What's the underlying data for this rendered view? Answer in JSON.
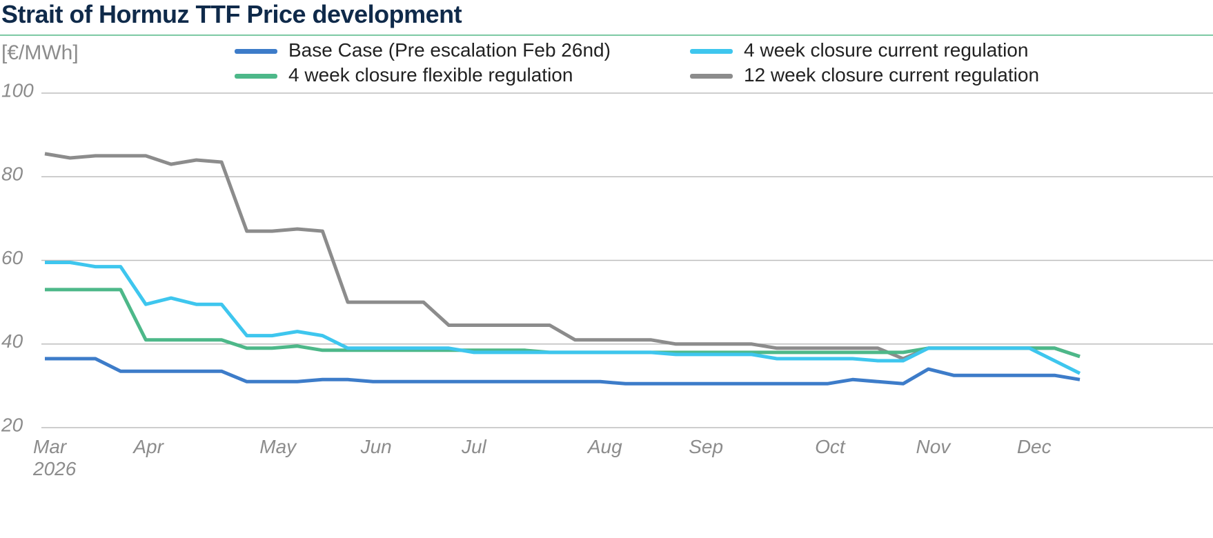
{
  "chart_data": {
    "type": "line",
    "title": "Strait of Hormuz  TTF Price development",
    "y_label": "[€/MWh]",
    "categories": [
      "Mar 2026",
      null,
      null,
      null,
      "Apr",
      null,
      null,
      null,
      null,
      "May",
      null,
      null,
      null,
      "Jun",
      null,
      null,
      null,
      "Jul",
      null,
      null,
      null,
      null,
      "Aug",
      null,
      null,
      null,
      "Sep",
      null,
      null,
      null,
      null,
      "Oct",
      null,
      null,
      null,
      "Nov",
      null,
      null,
      null,
      "Dec",
      null,
      null
    ],
    "ylim": [
      20,
      100
    ],
    "yticks": [
      20,
      40,
      60,
      80,
      100
    ],
    "grid": true,
    "series": [
      {
        "name": "Base Case (Pre escalation Feb 26nd)",
        "color": "#3d7cc9",
        "values": [
          36.5,
          36.5,
          36.5,
          33.5,
          33.5,
          33.5,
          33.5,
          33.5,
          31,
          31,
          31,
          31.5,
          31.5,
          31,
          31,
          31,
          31,
          31,
          31,
          31,
          31,
          31,
          31,
          30.5,
          30.5,
          30.5,
          30.5,
          30.5,
          30.5,
          30.5,
          30.5,
          30.5,
          31.5,
          31,
          30.5,
          34,
          32.5,
          32.5,
          32.5,
          32.5,
          32.5,
          31.5
        ]
      },
      {
        "name": "4 week closure flexible regulation",
        "color": "#4db889",
        "values": [
          53,
          53,
          53,
          53,
          41,
          41,
          41,
          41,
          39,
          39,
          39.5,
          38.5,
          38.5,
          38.5,
          38.5,
          38.5,
          38.5,
          38.5,
          38.5,
          38.5,
          38,
          38,
          38,
          38,
          38,
          38,
          38,
          38,
          38,
          38,
          38,
          38,
          38,
          38,
          38,
          39,
          39,
          39,
          39,
          39,
          39,
          37
        ]
      },
      {
        "name": "4 week closure current regulation",
        "color": "#3ec6ee",
        "values": [
          59.5,
          59.5,
          58.5,
          58.5,
          49.5,
          51,
          49.5,
          49.5,
          42,
          42,
          43,
          42,
          39,
          39,
          39,
          39,
          39,
          38,
          38,
          38,
          38,
          38,
          38,
          38,
          38,
          37.5,
          37.5,
          37.5,
          37.5,
          36.5,
          36.5,
          36.5,
          36.5,
          36,
          36,
          39,
          39,
          39,
          39,
          39,
          36,
          33
        ]
      },
      {
        "name": "12 week closure current regulation",
        "color": "#8c8c8c",
        "values": [
          85.5,
          84.5,
          85,
          85,
          85,
          83,
          84,
          83.5,
          67,
          67,
          67.5,
          67,
          50,
          50,
          50,
          50,
          44.5,
          44.5,
          44.5,
          44.5,
          44.5,
          41,
          41,
          41,
          41,
          40,
          40,
          40,
          40,
          39,
          39,
          39,
          39,
          39,
          36.5,
          39,
          39,
          39,
          39,
          39,
          39,
          37
        ]
      }
    ]
  }
}
